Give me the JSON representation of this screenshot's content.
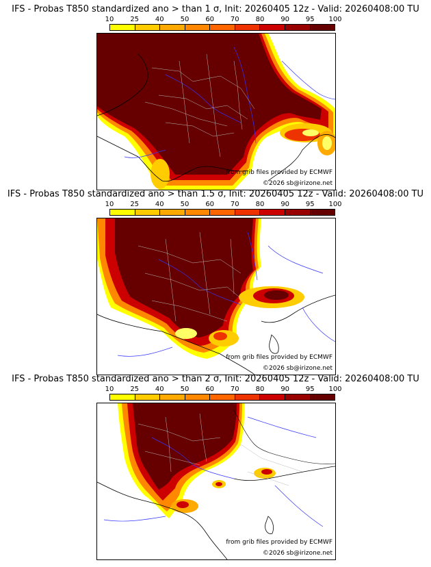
{
  "colors": {
    "levels": [
      "#ffff00",
      "#ffcc00",
      "#ffaa00",
      "#ff8800",
      "#ff6600",
      "#ee3300",
      "#cc0000",
      "#990000",
      "#660000"
    ],
    "coast": "#000000",
    "rivers": "#3333ff",
    "borders": "#bbbbbb"
  },
  "colorbar": {
    "ticks": [
      "10",
      "25",
      "40",
      "50",
      "60",
      "70",
      "80",
      "90",
      "95",
      "100"
    ]
  },
  "panels": [
    {
      "title": "IFS - Probas T850  standardized ano > than 1 σ, Init: 20260405 12z - Valid: 20260408:00 TU",
      "credit_grib": "from grib files provided by ECMWF",
      "credit_copy": "©2026 sb@irizone.net"
    },
    {
      "title": "IFS - Probas T850  standardized ano > than 1.5 σ, Init: 20260405 12z - Valid: 20260408:00 TU",
      "credit_grib": "from grib files provided by ECMWF",
      "credit_copy": "©2026 sb@irizone.net"
    },
    {
      "title": "IFS - Probas T850  standardized ano > than 2 σ, Init: 20260405 12z - Valid: 20260408:00 TU",
      "credit_grib": "from grib files provided by ECMWF",
      "credit_copy": "©2026 sb@irizone.net"
    }
  ]
}
